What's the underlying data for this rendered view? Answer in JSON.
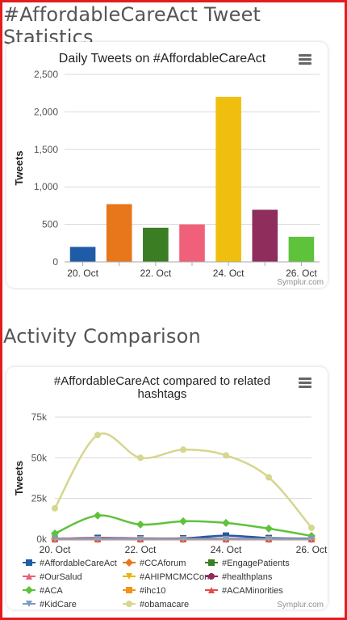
{
  "page": {
    "title": "#AffordableCareAct Tweet Statistics",
    "section2_title": "Activity Comparison"
  },
  "credit": "Symplur.com",
  "icons": {
    "menu": "hamburger-menu-icon"
  },
  "chart_data": [
    {
      "type": "bar",
      "title": "Daily Tweets on #AffordableCareAct",
      "ylabel": "Tweets",
      "xlabel": "",
      "categories": [
        "20. Oct",
        "21. Oct",
        "22. Oct",
        "23. Oct",
        "24. Oct",
        "25. Oct",
        "26. Oct"
      ],
      "x_tick_labels": [
        "20. Oct",
        "22. Oct",
        "24. Oct",
        "26. Oct"
      ],
      "values": [
        200,
        770,
        455,
        500,
        2200,
        695,
        335
      ],
      "colors": [
        "#1f5ba6",
        "#e8761a",
        "#3a7d23",
        "#f0607a",
        "#f0be0e",
        "#8f2d5c",
        "#5fc23b"
      ],
      "ylim": [
        0,
        2500
      ],
      "yticks": [
        0,
        500,
        1000,
        1500,
        2000,
        2500
      ],
      "ytick_labels": [
        "0",
        "500",
        "1,000",
        "1,500",
        "2,000",
        "2,500"
      ],
      "grid": true
    },
    {
      "type": "line",
      "title": "#AffordableCareAct compared to related hashtags",
      "title_lines": [
        "#AffordableCareAct compared to related",
        "hashtags"
      ],
      "ylabel": "Tweets",
      "xlabel": "",
      "x": [
        "20. Oct",
        "21. Oct",
        "22. Oct",
        "23. Oct",
        "24. Oct",
        "25. Oct",
        "26. Oct"
      ],
      "x_tick_labels": [
        "20. Oct",
        "22. Oct",
        "24. Oct",
        "26. Oct"
      ],
      "ylim": [
        0,
        75000
      ],
      "yticks": [
        0,
        25000,
        50000,
        75000
      ],
      "ytick_labels": [
        "0k",
        "25k",
        "50k",
        "75k"
      ],
      "grid": true,
      "legend_position": "bottom",
      "series": [
        {
          "name": "#AffordableCareAct",
          "color": "#1f5ba6",
          "marker": "square",
          "values": [
            200,
            770,
            455,
            500,
            2200,
            695,
            335
          ]
        },
        {
          "name": "#CCAforum",
          "color": "#e8761a",
          "marker": "diamond",
          "values": [
            0,
            0,
            0,
            0,
            0,
            0,
            0
          ]
        },
        {
          "name": "#EngagePatients",
          "color": "#3a7d23",
          "marker": "square",
          "values": [
            100,
            150,
            120,
            200,
            150,
            120,
            100
          ]
        },
        {
          "name": "#OurSalud",
          "color": "#e85f7a",
          "marker": "triangle",
          "values": [
            300,
            500,
            300,
            200,
            200,
            150,
            100
          ]
        },
        {
          "name": "#AHIPMCMCConf",
          "color": "#e8b60e",
          "marker": "triangle-down",
          "values": [
            0,
            0,
            0,
            0,
            0,
            0,
            0
          ]
        },
        {
          "name": "#healthplans",
          "color": "#8f2d5c",
          "marker": "circle",
          "values": [
            200,
            250,
            200,
            300,
            250,
            200,
            150
          ]
        },
        {
          "name": "#ACA",
          "color": "#5fc23b",
          "marker": "diamond",
          "values": [
            3500,
            14500,
            9000,
            11000,
            10000,
            6500,
            2000
          ]
        },
        {
          "name": "#ihc10",
          "color": "#f0941c",
          "marker": "square",
          "values": [
            0,
            0,
            0,
            0,
            0,
            0,
            0
          ]
        },
        {
          "name": "#ACAMinorities",
          "color": "#e54a4a",
          "marker": "triangle",
          "values": [
            0,
            0,
            0,
            0,
            0,
            0,
            0
          ]
        },
        {
          "name": "#KidCare",
          "color": "#7c9cc2",
          "marker": "triangle-down",
          "values": [
            0,
            0,
            0,
            0,
            0,
            0,
            0
          ]
        },
        {
          "name": "#obamacare",
          "color": "#d6d68e",
          "marker": "circle",
          "values": [
            19000,
            64000,
            50000,
            55000,
            51500,
            38000,
            7000
          ]
        }
      ]
    }
  ]
}
